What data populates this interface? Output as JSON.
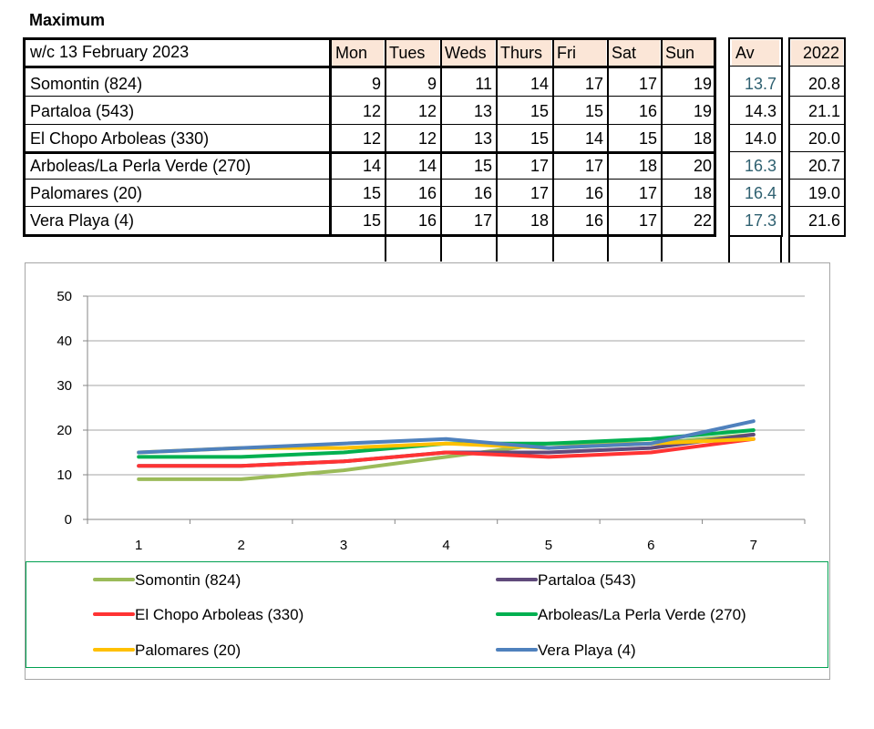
{
  "title": "Maximum",
  "table": {
    "week_label": "w/c  13 February 2023",
    "days": [
      "Mon",
      "Tues",
      "Weds",
      "Thurs",
      "Fri",
      "Sat",
      "Sun"
    ],
    "av_header": "Av",
    "year_header": "2022",
    "rows": [
      {
        "name": "Somontin (824)",
        "values": [
          "9",
          "9",
          "11",
          "14",
          "17",
          "17",
          "19"
        ],
        "av": "13.7",
        "year": "20.8",
        "av_teal": true
      },
      {
        "name": "Partaloa (543)",
        "values": [
          "12",
          "12",
          "13",
          "15",
          "15",
          "16",
          "19"
        ],
        "av": "14.3",
        "year": "21.1",
        "av_teal": false
      },
      {
        "name": "El Chopo  Arboleas (330)",
        "values": [
          "12",
          "12",
          "13",
          "15",
          "14",
          "15",
          "18"
        ],
        "av": "14.0",
        "year": "20.0",
        "av_teal": false
      },
      {
        "name": "Arboleas/La Perla Verde (270)",
        "values": [
          "14",
          "14",
          "15",
          "17",
          "17",
          "18",
          "20"
        ],
        "av": "16.3",
        "year": "20.7",
        "av_teal": true
      },
      {
        "name": "Palomares (20)",
        "values": [
          "15",
          "16",
          "16",
          "17",
          "16",
          "17",
          "18"
        ],
        "av": "16.4",
        "year": "19.0",
        "av_teal": true
      },
      {
        "name": "Vera Playa (4)",
        "values": [
          "15",
          "16",
          "17",
          "18",
          "16",
          "17",
          "22"
        ],
        "av": "17.3",
        "year": "21.6",
        "av_teal": true
      }
    ],
    "colors": {
      "header_bg": "#fbe6d7",
      "teal_text": "#2e6070"
    }
  },
  "chart_data": {
    "type": "line",
    "x": [
      1,
      2,
      3,
      4,
      5,
      6,
      7
    ],
    "ylim": [
      0,
      50
    ],
    "yticks": [
      0,
      10,
      20,
      30,
      40,
      50
    ],
    "grid": true,
    "legend_position": "bottom",
    "series": [
      {
        "name": "Somontin (824)",
        "values": [
          9,
          9,
          11,
          14,
          17,
          17,
          19
        ],
        "color": "#9bbb59"
      },
      {
        "name": "Partaloa (543)",
        "values": [
          12,
          12,
          13,
          15,
          15,
          16,
          19
        ],
        "color": "#604a7b"
      },
      {
        "name": "El Chopo  Arboleas (330)",
        "values": [
          12,
          12,
          13,
          15,
          14,
          15,
          18
        ],
        "color": "#ff3333"
      },
      {
        "name": "Arboleas/La Perla Verde (270)",
        "values": [
          14,
          14,
          15,
          17,
          17,
          18,
          20
        ],
        "color": "#00b050"
      },
      {
        "name": "Palomares (20)",
        "values": [
          15,
          16,
          16,
          17,
          16,
          17,
          18
        ],
        "color": "#ffc000"
      },
      {
        "name": "Vera Playa (4)",
        "values": [
          15,
          16,
          17,
          18,
          16,
          17,
          22
        ],
        "color": "#4f81bd"
      }
    ]
  }
}
